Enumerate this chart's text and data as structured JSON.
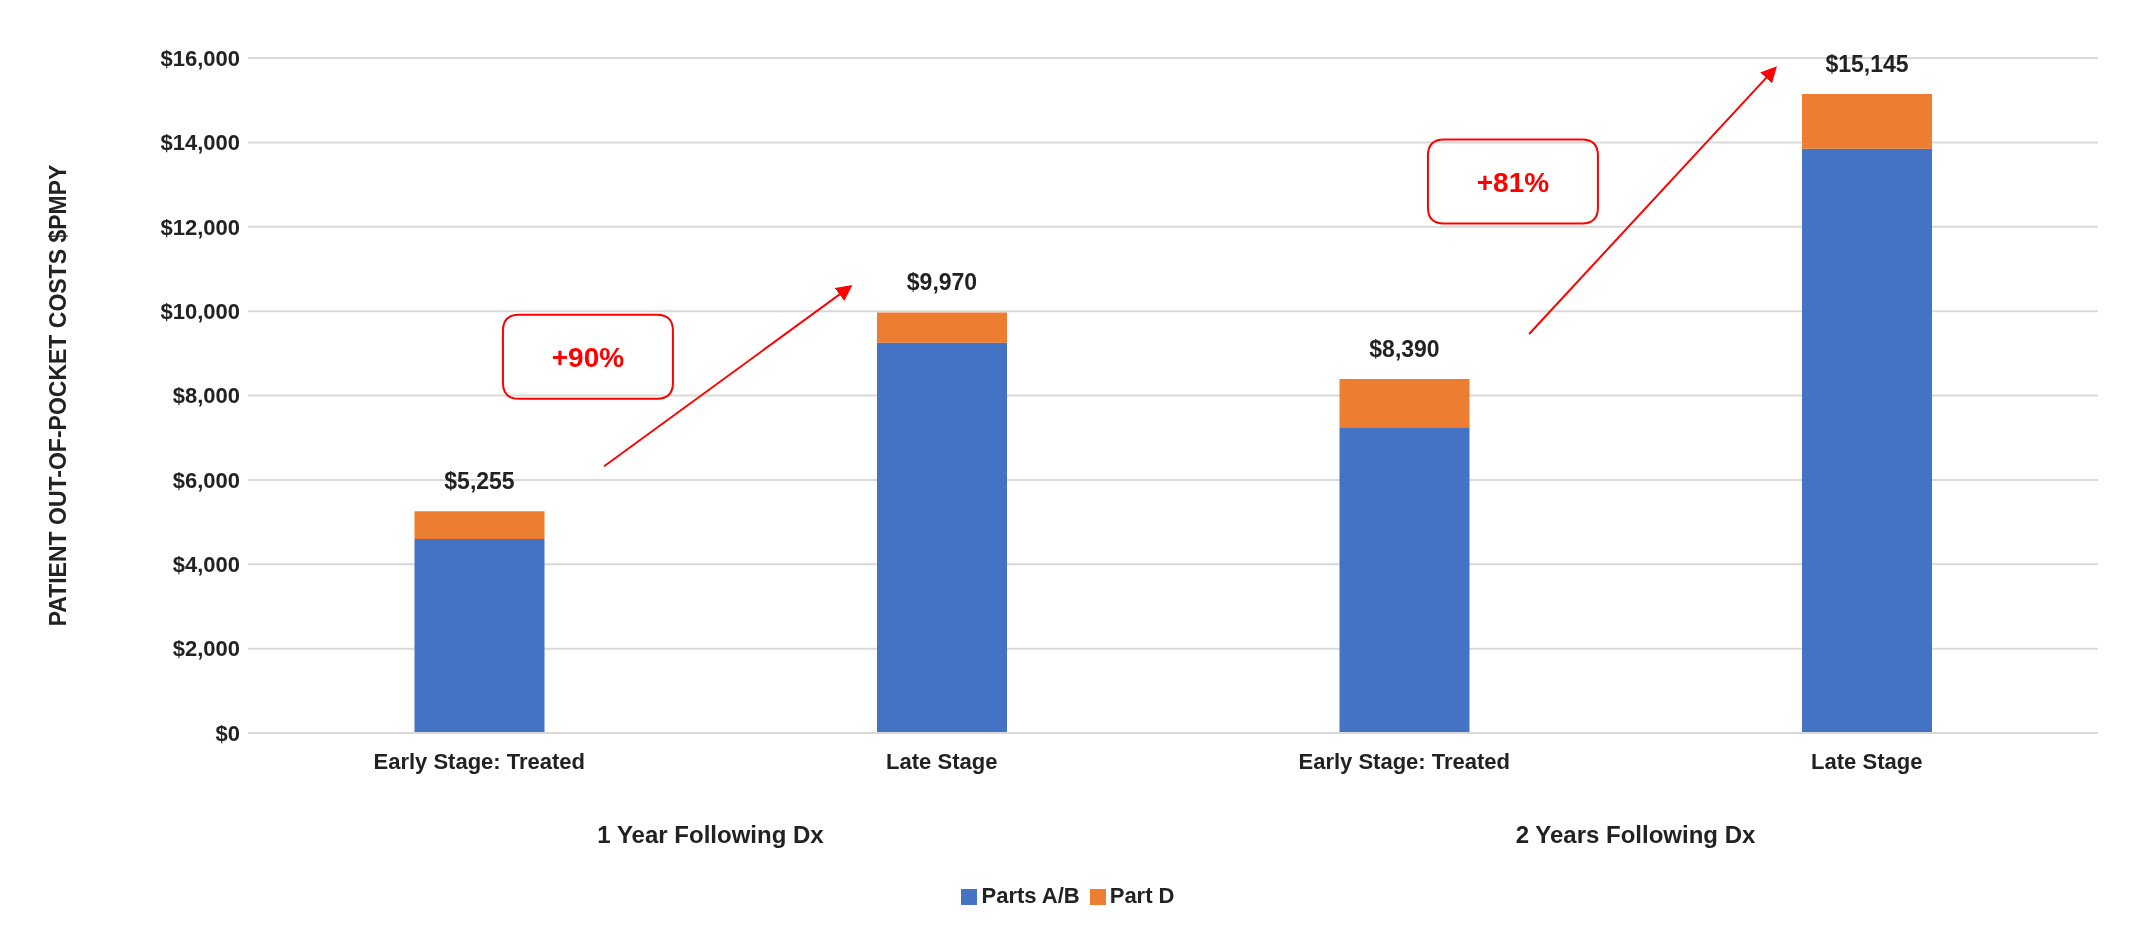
{
  "chart_data": {
    "type": "bar",
    "stacked": true,
    "ylabel": "PATIENT OUT-OF-POCKET  COSTS $PMPY",
    "categories": [
      "Early Stage: Treated",
      "Late Stage",
      "Early Stage: Treated",
      "Late Stage"
    ],
    "series": [
      {
        "name": "Parts A/B",
        "color": "#4472c4",
        "values": [
          4600,
          9250,
          7250,
          13850
        ]
      },
      {
        "name": "Part D",
        "color": "#ed7d31",
        "values": [
          655,
          720,
          1140,
          1295
        ]
      }
    ],
    "totals": [
      "$5,255",
      "$9,970",
      "$8,390",
      "$15,145"
    ],
    "ylim": [
      0,
      16000
    ],
    "yticks": [
      {
        "value": 0,
        "label": "$0"
      },
      {
        "value": 2000,
        "label": "$2,000"
      },
      {
        "value": 4000,
        "label": "$4,000"
      },
      {
        "value": 6000,
        "label": "$6,000"
      },
      {
        "value": 8000,
        "label": "$8,000"
      },
      {
        "value": 10000,
        "label": "$10,000"
      },
      {
        "value": 12000,
        "label": "$12,000"
      },
      {
        "value": 14000,
        "label": "$14,000"
      },
      {
        "value": 16000,
        "label": "$16,000"
      }
    ],
    "grid": "y",
    "legend": "bottom",
    "annotations": [
      "+90%",
      "+81%",
      "1 Year Following Dx",
      "2 Years Following Dx"
    ]
  }
}
